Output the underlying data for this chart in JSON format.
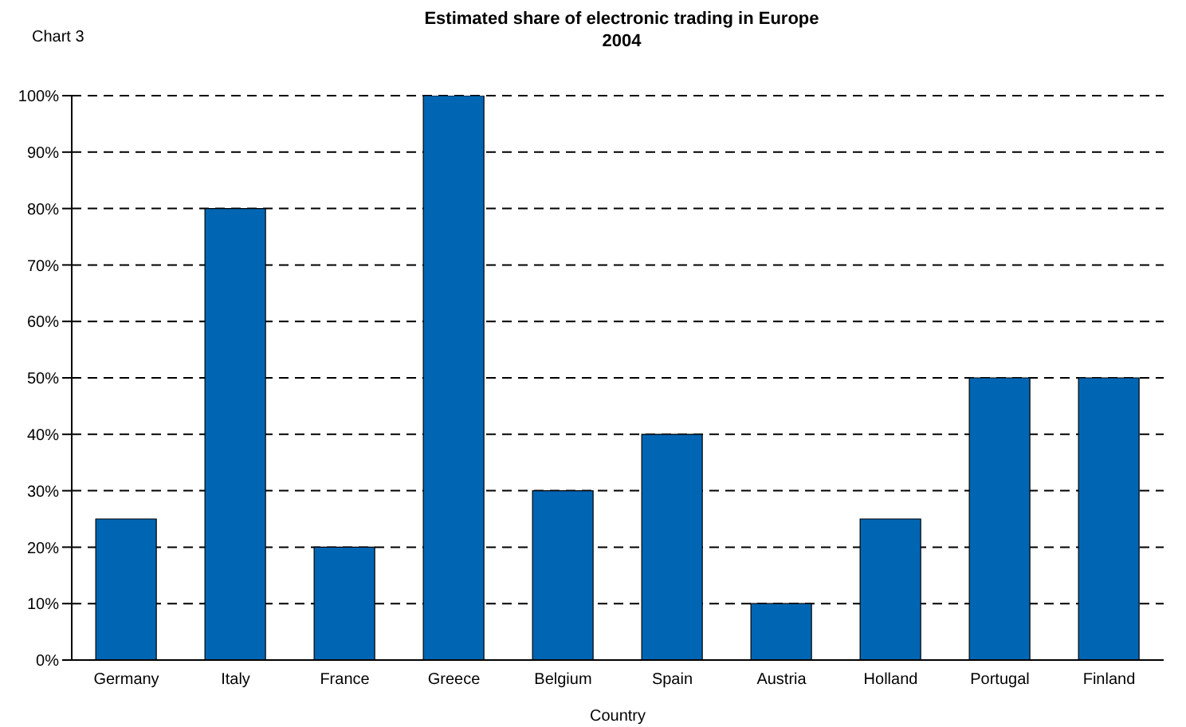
{
  "chart_data": {
    "type": "bar",
    "title": "Estimated share of electronic trading in Europe",
    "subtitle": "2004",
    "xlabel": "Country",
    "annotations": [
      "Chart 3"
    ],
    "categories": [
      "Germany",
      "Italy",
      "France",
      "Greece",
      "Belgium",
      "Spain",
      "Austria",
      "Holland",
      "Portugal",
      "Finland"
    ],
    "values": [
      25,
      80,
      20,
      100,
      30,
      40,
      10,
      25,
      50,
      50
    ],
    "color": "#0066b3",
    "ylim": [
      0,
      100
    ],
    "yticks": [
      {
        "value": 0,
        "label": "0%"
      },
      {
        "value": 10,
        "label": "10%"
      },
      {
        "value": 20,
        "label": "20%"
      },
      {
        "value": 30,
        "label": "30%"
      },
      {
        "value": 40,
        "label": "40%"
      },
      {
        "value": 50,
        "label": "50%"
      },
      {
        "value": 60,
        "label": "60%"
      },
      {
        "value": 70,
        "label": "70%"
      },
      {
        "value": 80,
        "label": "80%"
      },
      {
        "value": 90,
        "label": "90%"
      },
      {
        "value": 100,
        "label": "100%"
      }
    ],
    "grid": "y"
  }
}
